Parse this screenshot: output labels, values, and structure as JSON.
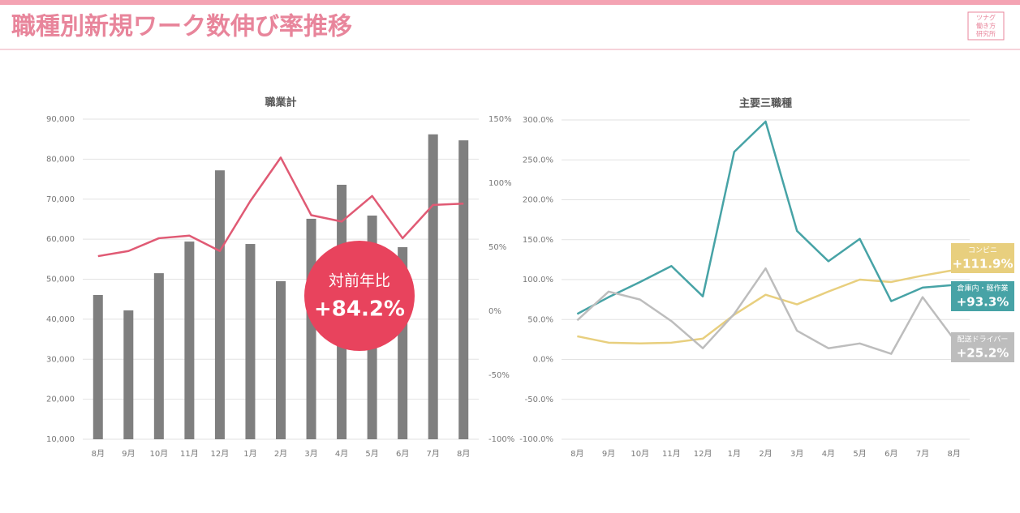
{
  "header": {
    "title": "職種別新規ワーク数伸び率推移",
    "logo": [
      "ツナグ",
      "働き方",
      "研究所"
    ]
  },
  "chart_data": [
    {
      "type": "bar",
      "title": "職業計",
      "categories": [
        "8月",
        "9月",
        "10月",
        "11月",
        "12月",
        "1月",
        "2月",
        "3月",
        "4月",
        "5月",
        "6月",
        "7月",
        "8月"
      ],
      "series": [
        {
          "color": "#7f7f7f",
          "values": [
            46050,
            42200,
            51500,
            59400,
            77200,
            58800,
            49500,
            65100,
            73600,
            65900,
            58000,
            86200,
            84700
          ]
        },
        {
          "type": "line",
          "axis": "y2",
          "color": "#e05a74",
          "values": [
            43,
            47,
            57,
            59,
            47,
            86,
            120,
            75,
            70,
            90,
            57,
            83,
            84
          ]
        }
      ],
      "ylim": [
        10000,
        90000
      ],
      "yticks": [
        {
          "value": 90000,
          "label": "90,000"
        },
        {
          "value": 80000,
          "label": "80,000"
        },
        {
          "value": 70000,
          "label": "70,000"
        },
        {
          "value": 60000,
          "label": "60,000"
        },
        {
          "value": 50000,
          "label": "50,000"
        },
        {
          "value": 40000,
          "label": "40,000"
        },
        {
          "value": 30000,
          "label": "30,000"
        },
        {
          "value": 20000,
          "label": "20,000"
        },
        {
          "value": 10000,
          "label": "10,000"
        }
      ],
      "y2lim": [
        -100,
        150
      ],
      "y2ticks": [
        {
          "value": 150,
          "label": "150%"
        },
        {
          "value": 100,
          "label": "100%"
        },
        {
          "value": 50,
          "label": "50%"
        },
        {
          "value": 0,
          "label": "0%"
        },
        {
          "value": -50,
          "label": "-50%"
        },
        {
          "value": -100,
          "label": "-100%"
        }
      ],
      "grid": true,
      "annotation": [
        "対前年比",
        "+84.2%"
      ]
    },
    {
      "type": "line",
      "title": "主要三職種",
      "categories": [
        "8月",
        "9月",
        "10月",
        "11月",
        "12月",
        "1月",
        "2月",
        "3月",
        "4月",
        "5月",
        "6月",
        "7月",
        "8月"
      ],
      "series": [
        {
          "name": "コンビニ",
          "color": "#e8cf7e",
          "values": [
            29,
            21,
            20,
            21,
            26,
            56,
            81,
            69,
            85,
            100,
            97,
            105,
            111.9
          ],
          "value_labels": [
            null,
            null,
            null,
            null,
            null,
            null,
            null,
            null,
            null,
            null,
            null,
            null,
            "+111.9%"
          ]
        },
        {
          "name": "倉庫内・軽作業",
          "color": "#47a3a6",
          "values": [
            57,
            78,
            97,
            117,
            79,
            260,
            298,
            161,
            123,
            151,
            73,
            90,
            93.3
          ],
          "value_labels": [
            null,
            null,
            null,
            null,
            null,
            null,
            null,
            null,
            null,
            null,
            null,
            null,
            "+93.3%"
          ]
        },
        {
          "name": "配送ドライバー",
          "color": "#bdbdbd",
          "values": [
            49,
            85,
            75,
            48,
            14,
            57,
            114,
            36,
            14,
            20,
            7,
            78,
            25.2
          ],
          "value_labels": [
            null,
            null,
            null,
            null,
            null,
            null,
            null,
            null,
            null,
            null,
            null,
            null,
            "+25.2%"
          ]
        }
      ],
      "ylim": [
        -100,
        300
      ],
      "yticks": [
        {
          "value": 300,
          "label": "300.0%"
        },
        {
          "value": 250,
          "label": "250.0%"
        },
        {
          "value": 200,
          "label": "200.0%"
        },
        {
          "value": 150,
          "label": "150.0%"
        },
        {
          "value": 100,
          "label": "100.0%"
        },
        {
          "value": 50,
          "label": "50.0%"
        },
        {
          "value": 0,
          "label": "0.0%"
        },
        {
          "value": -50,
          "label": "-50.0%"
        },
        {
          "value": -100,
          "label": "-100.0%"
        }
      ],
      "grid": true
    }
  ]
}
